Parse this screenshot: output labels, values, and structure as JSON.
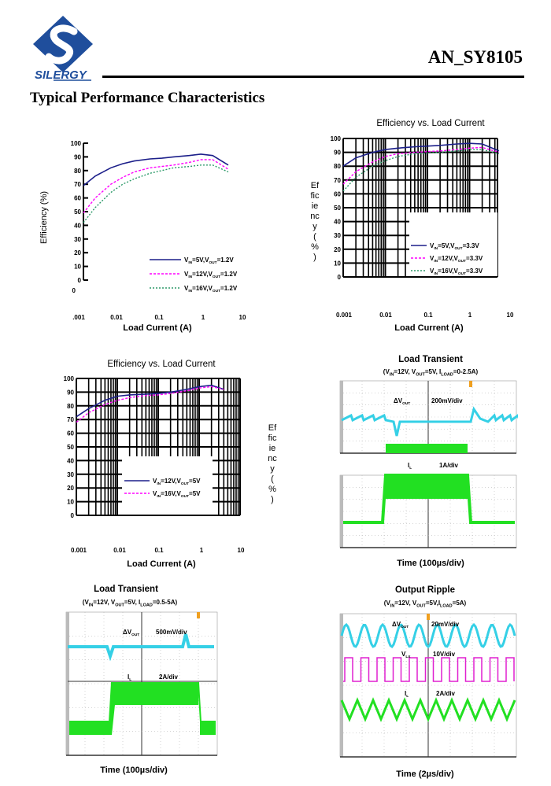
{
  "header": {
    "logo_text": "SILERGY",
    "doc_id": "AN_SY8105",
    "section_title": "Typical Performance Characteristics"
  },
  "colors": {
    "blue": "#1c1f8a",
    "magenta": "#ff00ff",
    "green_dotted": "#2e9a6a",
    "scope_cyan": "#35d0e6",
    "scope_green": "#22e022",
    "scope_magenta": "#e020d0",
    "marker_orange": "#f0a020"
  },
  "chart_data": [
    {
      "type": "line",
      "title": "",
      "xlabel": "Load Current (A)",
      "ylabel": "Efficiency (%)",
      "xscale": "log",
      "xlim": [
        0.001,
        10
      ],
      "ylim": [
        0,
        100
      ],
      "x_tick_labels": [
        ".001",
        "0.01",
        "0.1",
        "1",
        "10"
      ],
      "y_tick_labels": [
        "100",
        "90",
        "80",
        "70",
        "60",
        "50",
        "40",
        "30",
        "20",
        "10",
        "0"
      ],
      "y_extra_label": "0",
      "grid": false,
      "legend_placement": "bottom-right",
      "x": [
        0.001,
        0.002,
        0.005,
        0.01,
        0.02,
        0.05,
        0.1,
        0.2,
        0.5,
        1,
        2,
        5
      ],
      "series": [
        {
          "name": "VIN=5V,VOUT=1.2V",
          "label_parts": [
            "V",
            "IN",
            "=5V,V",
            "OUT",
            "=1.2V"
          ],
          "style": "solid",
          "color": "#1c1f8a",
          "values": [
            69,
            76,
            82,
            85,
            87,
            88.5,
            89,
            90,
            91,
            92,
            91,
            84
          ]
        },
        {
          "name": "VIN=12V,VOUT=1.2V",
          "label_parts": [
            "V",
            "IN",
            "=12V,V",
            "OUT",
            "=1.2V"
          ],
          "style": "dashed",
          "color": "#ff00ff",
          "values": [
            49,
            60,
            70,
            75,
            79,
            82,
            83,
            84,
            86,
            88,
            88,
            81
          ]
        },
        {
          "name": "VIN=16V,VOUT=1.2V",
          "label_parts": [
            "V",
            "IN",
            "=16V,V",
            "OUT",
            "=1.2V"
          ],
          "style": "dotted",
          "color": "#2e9a6a",
          "values": [
            42,
            53,
            64,
            70,
            74,
            78,
            80,
            82,
            83,
            84,
            84,
            79
          ]
        }
      ]
    },
    {
      "type": "line",
      "title": "Efficiency vs. Load Current",
      "xlabel": "Load Current (A)",
      "ylabel_letters": [
        "Ef",
        "fic",
        "ie",
        "nc",
        "y",
        "(",
        "%",
        ")"
      ],
      "xscale": "log",
      "xlim": [
        0.001,
        5
      ],
      "ylim": [
        0,
        100
      ],
      "x_tick_labels": [
        "0.001",
        "0.01",
        "0.1",
        "1",
        "10"
      ],
      "y_tick_labels": [
        "100",
        "90",
        "80",
        "70",
        "60",
        "50",
        "40",
        "30",
        "20",
        "10",
        "0"
      ],
      "grid": true,
      "legend_placement": "bottom-right",
      "x": [
        0.001,
        0.002,
        0.005,
        0.01,
        0.02,
        0.05,
        0.1,
        0.2,
        0.5,
        1,
        2,
        5
      ],
      "series": [
        {
          "name": "VIN=5V,VOUT=3.3V",
          "label_parts": [
            "V",
            "IN",
            "=5V,V",
            "OUT",
            "=3.3V"
          ],
          "style": "solid",
          "color": "#1c1f8a",
          "values": [
            80,
            86,
            90,
            92,
            93,
            94,
            94.5,
            95,
            96,
            96.5,
            96,
            91
          ]
        },
        {
          "name": "VIN=12V,VOUT=3.3V",
          "label_parts": [
            "V",
            "IN",
            "=12V,V",
            "OUT",
            "=3.3V"
          ],
          "style": "dashed",
          "color": "#ff00ff",
          "values": [
            67,
            76,
            83,
            87,
            89,
            90,
            90.5,
            91,
            92,
            93,
            93.5,
            90
          ]
        },
        {
          "name": "VIN=16V,VOUT=3.3V",
          "label_parts": [
            "V",
            "IN",
            "=16V,V",
            "OUT",
            "=3.3V"
          ],
          "style": "dotted",
          "color": "#2e9a6a",
          "values": [
            62,
            72,
            80,
            84,
            87,
            89,
            89.5,
            90,
            91,
            92,
            92,
            89
          ]
        }
      ]
    },
    {
      "type": "line",
      "title": "Efficiency vs. Load Current",
      "xlabel": "Load Current (A)",
      "ylabel_letters": [
        "Ef",
        "fic",
        "ie",
        "nc",
        "y",
        "(",
        "%",
        ")"
      ],
      "xscale": "log",
      "xlim": [
        0.001,
        5
      ],
      "ylim": [
        0,
        100
      ],
      "x_tick_labels": [
        "0.001",
        "0.01",
        "0.1",
        "1",
        "10"
      ],
      "y_tick_labels": [
        "100",
        "90",
        "80",
        "70",
        "60",
        "50",
        "40",
        "30",
        "20",
        "10",
        "0"
      ],
      "grid": true,
      "legend_placement": "bottom-center",
      "x": [
        0.001,
        0.002,
        0.005,
        0.01,
        0.02,
        0.05,
        0.1,
        0.2,
        0.5,
        1,
        2,
        4
      ],
      "series": [
        {
          "name": "VIN=12V,VOUT=5V",
          "label_parts": [
            "V",
            "IN",
            "=12V,V",
            "OUT",
            "=5V"
          ],
          "style": "solid",
          "color": "#1c1f8a",
          "values": [
            72,
            78,
            84,
            87,
            88,
            88.5,
            89,
            90,
            92,
            94,
            95,
            92
          ]
        },
        {
          "name": "VIN=16V,VOUT=5V",
          "label_parts": [
            "V",
            "IN",
            "=16V,V",
            "OUT",
            "=5V"
          ],
          "style": "dashed",
          "color": "#ff00ff",
          "values": [
            68,
            75,
            81,
            84,
            86,
            87.5,
            88,
            89,
            91,
            93,
            94,
            92
          ]
        }
      ]
    }
  ],
  "scopes": [
    {
      "title": "Load Transient",
      "subtitle_parts": [
        "(V",
        "IN",
        "=12V, V",
        "OUT",
        "=5V, I",
        "LOAD",
        "=0-2.5A)"
      ],
      "channels": [
        {
          "label_parts": [
            "ΔV",
            "OUT"
          ],
          "scale": "200mV/div"
        },
        {
          "label_parts": [
            "I",
            "L"
          ],
          "scale": "1A/div"
        }
      ],
      "time_label": "Time (100µs/div)"
    },
    {
      "title": "Load Transient",
      "subtitle_parts": [
        "(V",
        "IN",
        "=12V, V",
        "OUT",
        "=5V, I",
        "LOAD",
        "=0.5-5A)"
      ],
      "channels": [
        {
          "label_parts": [
            "ΔV",
            "OUT"
          ],
          "scale": "500mV/div"
        },
        {
          "label_parts": [
            "I",
            "L"
          ],
          "scale": "2A/div"
        }
      ],
      "time_label": "Time (100µs/div)"
    },
    {
      "title": "Output Ripple",
      "subtitle_parts": [
        "(V",
        "IN",
        "=12V, V",
        "OUT",
        "=5V,I",
        "LOAD",
        "=5A)"
      ],
      "channels": [
        {
          "label_parts": [
            "ΔV",
            "OUT"
          ],
          "scale": "20mV/div"
        },
        {
          "label_parts": [
            "V",
            "LX"
          ],
          "scale": "10V/div"
        },
        {
          "label_parts": [
            "I",
            "L"
          ],
          "scale": "2A/div"
        }
      ],
      "time_label": "Time (2µs/div)"
    }
  ]
}
